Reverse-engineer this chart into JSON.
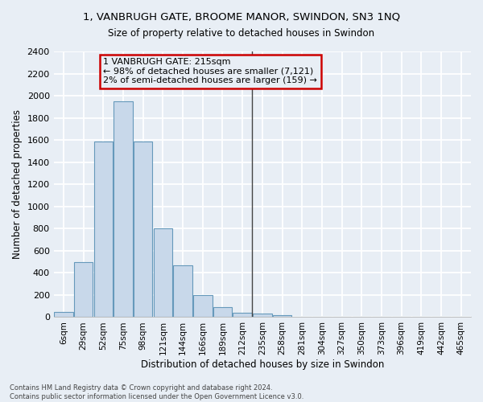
{
  "title1": "1, VANBRUGH GATE, BROOME MANOR, SWINDON, SN3 1NQ",
  "title2": "Size of property relative to detached houses in Swindon",
  "xlabel": "Distribution of detached houses by size in Swindon",
  "ylabel": "Number of detached properties",
  "bar_labels": [
    "6sqm",
    "29sqm",
    "52sqm",
    "75sqm",
    "98sqm",
    "121sqm",
    "144sqm",
    "166sqm",
    "189sqm",
    "212sqm",
    "235sqm",
    "258sqm",
    "281sqm",
    "304sqm",
    "327sqm",
    "350sqm",
    "373sqm",
    "396sqm",
    "419sqm",
    "442sqm",
    "465sqm"
  ],
  "bar_values": [
    50,
    500,
    1590,
    1950,
    1590,
    800,
    470,
    200,
    90,
    40,
    30,
    20,
    0,
    0,
    0,
    0,
    0,
    0,
    0,
    0,
    0
  ],
  "bar_color": "#c8d8ea",
  "bar_edgecolor": "#6699bb",
  "vline_x": 9.5,
  "vline_color": "#444444",
  "ylim_max": 2400,
  "ytick_step": 200,
  "annotation_title": "1 VANBRUGH GATE: 215sqm",
  "annotation_line1": "← 98% of detached houses are smaller (7,121)",
  "annotation_line2": "2% of semi-detached houses are larger (159) →",
  "annotation_box_edgecolor": "#cc0000",
  "footnote1": "Contains HM Land Registry data © Crown copyright and database right 2024.",
  "footnote2": "Contains public sector information licensed under the Open Government Licence v3.0.",
  "bg_color": "#e8eef5",
  "grid_color": "#ffffff",
  "title1_fontsize": 9.5,
  "title2_fontsize": 8.5,
  "axis_label_fontsize": 8.5,
  "tick_fontsize": 8,
  "xtick_fontsize": 7.5,
  "annot_fontsize": 8,
  "footnote_fontsize": 6
}
